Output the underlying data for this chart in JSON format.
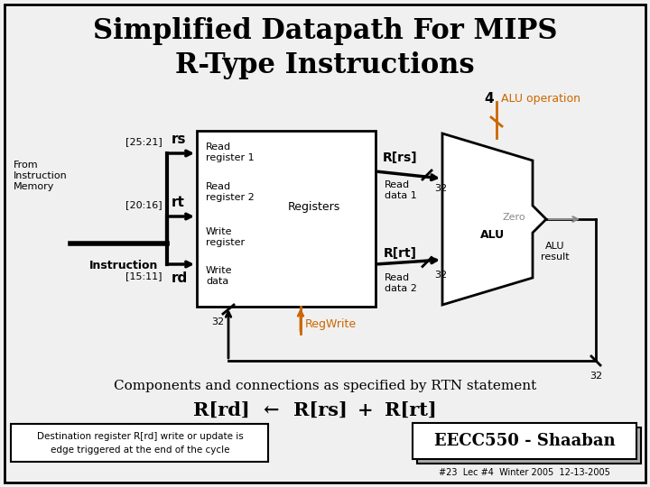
{
  "title_line1": "Simplified Datapath For MIPS",
  "title_line2": "R-Type Instructions",
  "bg_color": "#f0f0f0",
  "orange_color": "#cc6600",
  "gray_color": "#888888",
  "footnote": "#23  Lec #4  Winter 2005  12-13-2005"
}
